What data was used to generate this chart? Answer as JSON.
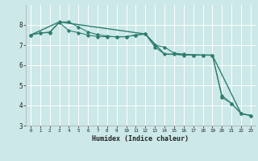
{
  "xlabel": "Humidex (Indice chaleur)",
  "bg_color": "#cce8e8",
  "grid_color": "#ffffff",
  "line_color": "#2e7d6e",
  "xlim": [
    -0.5,
    23.5
  ],
  "ylim": [
    3,
    9
  ],
  "yticks": [
    3,
    4,
    5,
    6,
    7,
    8
  ],
  "xticks": [
    0,
    1,
    2,
    3,
    4,
    5,
    6,
    7,
    8,
    9,
    10,
    11,
    12,
    13,
    14,
    15,
    16,
    17,
    18,
    19,
    20,
    21,
    22,
    23
  ],
  "series1_x": [
    0,
    1,
    2,
    3,
    4,
    5,
    6,
    7,
    8,
    9,
    10,
    11,
    12,
    13,
    14,
    15,
    16,
    17,
    18,
    19,
    20,
    21,
    22,
    23
  ],
  "series1_y": [
    7.5,
    7.6,
    7.62,
    8.12,
    7.72,
    7.62,
    7.5,
    7.42,
    7.42,
    7.42,
    7.42,
    7.5,
    7.55,
    6.9,
    6.55,
    6.55,
    6.5,
    6.5,
    6.5,
    6.5,
    4.4,
    4.1,
    3.6,
    3.5
  ],
  "series2_x": [
    0,
    1,
    2,
    3,
    4,
    5,
    6,
    7,
    8,
    9,
    10,
    11,
    12,
    13,
    14,
    15,
    16,
    17,
    18,
    19,
    20,
    21,
    22,
    23
  ],
  "series2_y": [
    7.5,
    7.6,
    7.65,
    8.15,
    8.15,
    7.9,
    7.65,
    7.52,
    7.45,
    7.4,
    7.42,
    7.5,
    7.55,
    7.0,
    6.9,
    6.6,
    6.55,
    6.5,
    6.5,
    6.5,
    4.5,
    4.1,
    3.6,
    3.5
  ],
  "series3_x": [
    0,
    3,
    12,
    14,
    19,
    22,
    23
  ],
  "series3_y": [
    7.5,
    8.15,
    7.55,
    6.55,
    6.5,
    3.6,
    3.5
  ]
}
